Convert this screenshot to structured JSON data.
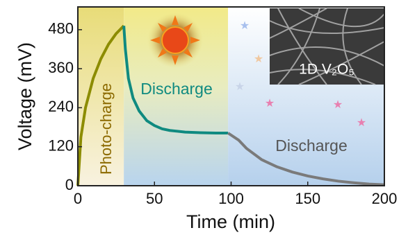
{
  "chart_data": {
    "type": "line",
    "xlabel": "Time (min)",
    "ylabel": "Voltage (mV)",
    "xlim": [
      0,
      200
    ],
    "xticks": [
      0,
      50,
      100,
      150,
      200
    ],
    "ylim": [
      0,
      550
    ],
    "yticks": [
      0,
      120,
      240,
      360,
      480
    ],
    "annotations": [
      "Photo-charge",
      "Discharge",
      "Discharge",
      "1D V₂O₅"
    ],
    "series": [
      {
        "color": "#8c8c00",
        "x": [
          0,
          2,
          5,
          10,
          15,
          20,
          25,
          30
        ],
        "values": [
          0,
          150,
          240,
          330,
          390,
          435,
          468,
          492
        ]
      },
      {
        "color": "#0f8a80",
        "x": [
          30,
          31,
          33,
          36,
          40,
          45,
          50,
          55,
          60,
          70,
          80,
          90,
          98
        ],
        "values": [
          492,
          420,
          330,
          270,
          230,
          200,
          185,
          175,
          170,
          165,
          163,
          162,
          162
        ]
      },
      {
        "color": "#7a7a7a",
        "x": [
          98,
          105,
          110,
          120,
          130,
          140,
          150,
          160,
          170,
          180,
          190,
          200
        ],
        "values": [
          162,
          140,
          115,
          80,
          58,
          42,
          30,
          21,
          14,
          9,
          5,
          3
        ]
      }
    ]
  }
}
